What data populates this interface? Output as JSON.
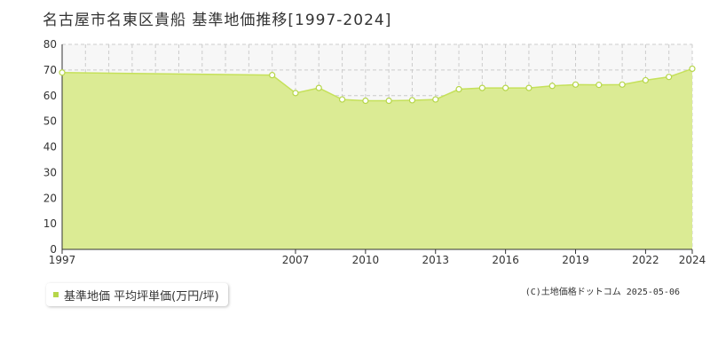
{
  "title": "名古屋市名東区貴船 基準地価推移[1997-2024]",
  "copyright": "(C)土地価格ドットコム 2025-05-06",
  "colors": {
    "fill": "#dbeb94",
    "line": "#c5e15a",
    "point_fill": "#ffffff",
    "point_stroke": "#b6d64a",
    "grid": "#cccccc",
    "upper_band": "#f7f7f7",
    "legend_swatch": "#b6d64a"
  },
  "chart_data": {
    "type": "area",
    "title": "名古屋市名東区貴船 基準地価推移[1997-2024]",
    "xlabel": "",
    "ylabel": "",
    "x_ticks": [
      "1997",
      "2007",
      "2010",
      "2013",
      "2016",
      "2019",
      "2022",
      "2024"
    ],
    "y_ticks": [
      "0",
      "10",
      "20",
      "30",
      "40",
      "50",
      "60",
      "70",
      "80"
    ],
    "ylim": [
      0,
      80
    ],
    "grid": true,
    "legend_position": "bottom-left",
    "series": [
      {
        "name": "基準地価 平均坪単価(万円/坪)",
        "points": [
          {
            "x": "1997",
            "y": 69.0
          },
          {
            "x": "2006",
            "y": 68.0
          },
          {
            "x": "2007",
            "y": 61.0
          },
          {
            "x": "2008",
            "y": 63.0
          },
          {
            "x": "2009",
            "y": 58.5
          },
          {
            "x": "2010",
            "y": 58.0
          },
          {
            "x": "2011",
            "y": 58.0
          },
          {
            "x": "2012",
            "y": 58.2
          },
          {
            "x": "2013",
            "y": 58.5
          },
          {
            "x": "2014",
            "y": 62.5
          },
          {
            "x": "2015",
            "y": 63.0
          },
          {
            "x": "2016",
            "y": 63.0
          },
          {
            "x": "2017",
            "y": 63.0
          },
          {
            "x": "2018",
            "y": 63.8
          },
          {
            "x": "2019",
            "y": 64.3
          },
          {
            "x": "2020",
            "y": 64.2
          },
          {
            "x": "2021",
            "y": 64.3
          },
          {
            "x": "2022",
            "y": 66.0
          },
          {
            "x": "2023",
            "y": 67.3
          },
          {
            "x": "2024",
            "y": 70.5
          }
        ]
      }
    ]
  }
}
